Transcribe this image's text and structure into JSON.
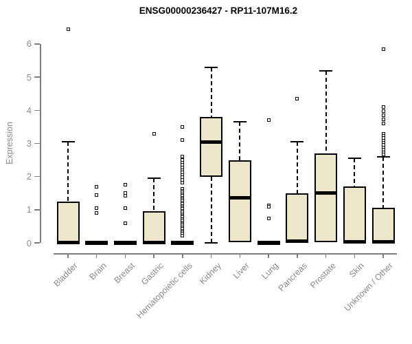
{
  "chart_data": {
    "type": "boxplot",
    "title": "ENSG00000236427 - RP11-107M16.2",
    "xlabel": "",
    "ylabel": "Expression",
    "ylim": [
      0,
      6.6
    ],
    "yticks": [
      0,
      1,
      2,
      3,
      4,
      5,
      6
    ],
    "grid": false,
    "box_fill_color": "#ece7ca",
    "box_line_color": "#000000",
    "axis_color": "#7d7d7d",
    "label_color": "#8a8a8a",
    "title_color": "#000000",
    "categories": [
      "Bladder",
      "Brain",
      "Breast",
      "Gastric",
      "Hematopoietic cells",
      "Kidney",
      "Liver",
      "Lung",
      "Pancreas",
      "Prostate",
      "Skin",
      "Unknown / Other"
    ],
    "series": [
      {
        "category": "Bladder",
        "whisker_low": 0,
        "q1": 0,
        "median": 0.02,
        "q3": 1.25,
        "whisker_high": 3.05,
        "outliers": [
          6.45
        ]
      },
      {
        "category": "Brain",
        "whisker_low": 0,
        "q1": 0,
        "median": 0,
        "q3": 0,
        "whisker_high": 0,
        "outliers": [
          1.7,
          1.45,
          1.05,
          0.9
        ]
      },
      {
        "category": "Breast",
        "whisker_low": 0,
        "q1": 0,
        "median": 0,
        "q3": 0,
        "whisker_high": 0,
        "outliers": [
          1.75,
          1.5,
          1.43,
          1.05,
          0.6
        ]
      },
      {
        "category": "Gastric",
        "whisker_low": 0,
        "q1": 0,
        "median": 0.02,
        "q3": 0.95,
        "whisker_high": 1.95,
        "outliers": [
          3.3
        ]
      },
      {
        "category": "Hematopoietic cells",
        "whisker_low": 0,
        "q1": 0,
        "median": 0,
        "q3": 0,
        "whisker_high": 0,
        "outliers": [
          3.5,
          3.1,
          2.6,
          2.5,
          2.42,
          2.35,
          2.28,
          2.2,
          2.12,
          2.05,
          1.98,
          1.9,
          1.82,
          1.62,
          1.57,
          1.52,
          1.47,
          1.42,
          1.37,
          1.32,
          1.27,
          1.22,
          1.17,
          1.12,
          1.07,
          1.02,
          0.97,
          0.92,
          0.87,
          0.82,
          0.77,
          0.72,
          0.67,
          0.62,
          0.57,
          0.52,
          0.47,
          0.42,
          0.37,
          0.32,
          0.27,
          0.22
        ]
      },
      {
        "category": "Kidney",
        "whisker_low": 0,
        "q1": 2.0,
        "median": 3.05,
        "q3": 3.8,
        "whisker_high": 5.3,
        "outliers": []
      },
      {
        "category": "Liver",
        "whisker_low": 0,
        "q1": 0.02,
        "median": 1.35,
        "q3": 2.5,
        "whisker_high": 3.65,
        "outliers": []
      },
      {
        "category": "Lung",
        "whisker_low": 0,
        "q1": 0,
        "median": 0,
        "q3": 0,
        "whisker_high": 0,
        "outliers": [
          3.7,
          1.13,
          1.08,
          0.73
        ]
      },
      {
        "category": "Pancreas",
        "whisker_low": 0,
        "q1": 0,
        "median": 0.05,
        "q3": 1.5,
        "whisker_high": 3.05,
        "outliers": [
          4.35
        ]
      },
      {
        "category": "Prostate",
        "whisker_low": 0,
        "q1": 0.02,
        "median": 1.5,
        "q3": 2.7,
        "whisker_high": 5.2,
        "outliers": []
      },
      {
        "category": "Skin",
        "whisker_low": 0,
        "q1": 0,
        "median": 0.03,
        "q3": 1.7,
        "whisker_high": 2.55,
        "outliers": []
      },
      {
        "category": "Unknown / Other",
        "whisker_low": 0,
        "q1": 0,
        "median": 0.03,
        "q3": 1.05,
        "whisker_high": 2.6,
        "outliers": [
          5.85,
          4.1,
          3.97,
          3.85,
          3.72,
          3.6,
          3.3,
          3.23,
          3.16,
          3.09,
          3.02,
          2.95,
          2.88,
          2.81,
          2.74,
          2.67
        ]
      }
    ]
  }
}
